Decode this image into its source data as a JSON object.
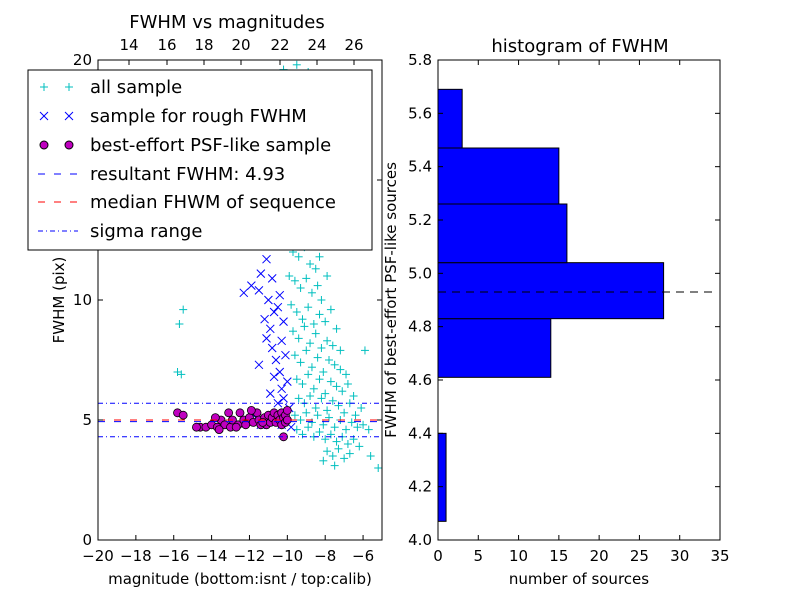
{
  "chart_data": [
    {
      "type": "scatter",
      "title": "FWHM vs magnitudes",
      "xlabel": "magnitude (bottom:isnt / top:calib)",
      "ylabel": "FWHM (pix)",
      "xlim": [
        -20,
        -5
      ],
      "ylim": [
        0,
        20
      ],
      "x_ticks": [
        "−20",
        "−18",
        "−16",
        "−14",
        "−12",
        "−10",
        "−8",
        "−6"
      ],
      "top_ticks": [
        "14",
        "16",
        "18",
        "20",
        "22",
        "24",
        "26"
      ],
      "y_ticks": [
        "0",
        "5",
        "10",
        "15",
        "20"
      ],
      "legend": [
        {
          "label": "all sample",
          "marker": "+",
          "color": "#00bfbf"
        },
        {
          "label": "sample for rough FWHM",
          "marker": "x",
          "color": "#0000ff"
        },
        {
          "label": "best-effort PSF-like sample",
          "marker": "o",
          "color": "#bf00bf"
        },
        {
          "label": "resultant FWHM: 4.93",
          "marker": "dashed",
          "color": "#0000ff"
        },
        {
          "label": "median FHWM of sequence",
          "marker": "dashed",
          "color": "#ff0000"
        },
        {
          "label": "sigma range",
          "marker": "dashdot",
          "color": "#0000ff"
        }
      ],
      "lines": {
        "resultant_fwhm": 4.93,
        "median_fwhm": 5.0,
        "sigma_range": [
          4.3,
          5.7
        ]
      },
      "series": [
        {
          "name": "all sample",
          "points": [
            [
              -15.8,
              7.0
            ],
            [
              -15.6,
              6.9
            ],
            [
              -15.5,
              9.6
            ],
            [
              -15.7,
              9.0
            ],
            [
              -10.2,
              19.6
            ],
            [
              -9.5,
              19.8
            ],
            [
              -8.9,
              19.5
            ],
            [
              -9.5,
              14.5
            ],
            [
              -9.0,
              15.2
            ],
            [
              -8.6,
              14.0
            ],
            [
              -9.8,
              13.0
            ],
            [
              -9.3,
              13.2
            ],
            [
              -8.7,
              13.0
            ],
            [
              -8.4,
              12.5
            ],
            [
              -9.7,
              12.0
            ],
            [
              -9.4,
              11.8
            ],
            [
              -9.1,
              12.2
            ],
            [
              -8.8,
              11.5
            ],
            [
              -8.5,
              11.3
            ],
            [
              -8.3,
              11.8
            ],
            [
              -9.9,
              11.0
            ],
            [
              -9.6,
              10.8
            ],
            [
              -9.3,
              10.5
            ],
            [
              -9.0,
              10.9
            ],
            [
              -8.7,
              10.3
            ],
            [
              -8.4,
              10.6
            ],
            [
              -8.2,
              10.0
            ],
            [
              -9.8,
              9.8
            ],
            [
              -9.5,
              9.5
            ],
            [
              -9.2,
              9.2
            ],
            [
              -8.9,
              9.7
            ],
            [
              -8.6,
              9.0
            ],
            [
              -8.3,
              9.4
            ],
            [
              -8.0,
              9.1
            ],
            [
              -9.7,
              8.7
            ],
            [
              -9.4,
              8.4
            ],
            [
              -9.1,
              8.9
            ],
            [
              -8.8,
              8.2
            ],
            [
              -8.5,
              8.6
            ],
            [
              -8.2,
              8.0
            ],
            [
              -7.9,
              8.3
            ],
            [
              -7.6,
              8.1
            ],
            [
              -9.6,
              7.7
            ],
            [
              -9.3,
              7.4
            ],
            [
              -9.0,
              7.9
            ],
            [
              -8.7,
              7.2
            ],
            [
              -8.4,
              7.6
            ],
            [
              -8.1,
              7.0
            ],
            [
              -7.8,
              7.5
            ],
            [
              -7.5,
              7.3
            ],
            [
              -7.2,
              7.1
            ],
            [
              -6.9,
              6.9
            ],
            [
              -9.5,
              6.7
            ],
            [
              -9.2,
              6.5
            ],
            [
              -8.9,
              6.9
            ],
            [
              -8.6,
              6.3
            ],
            [
              -8.3,
              6.7
            ],
            [
              -8.0,
              6.1
            ],
            [
              -7.7,
              6.6
            ],
            [
              -7.4,
              6.4
            ],
            [
              -7.1,
              6.2
            ],
            [
              -6.8,
              6.5
            ],
            [
              -6.5,
              6.0
            ],
            [
              -9.4,
              5.9
            ],
            [
              -9.1,
              5.7
            ],
            [
              -8.8,
              6.0
            ],
            [
              -8.5,
              5.5
            ],
            [
              -8.2,
              5.9
            ],
            [
              -7.9,
              5.4
            ],
            [
              -7.6,
              5.8
            ],
            [
              -7.3,
              5.6
            ],
            [
              -7.0,
              5.3
            ],
            [
              -6.7,
              5.7
            ],
            [
              -6.4,
              5.2
            ],
            [
              -6.1,
              5.5
            ],
            [
              -9.6,
              5.2
            ],
            [
              -9.3,
              5.0
            ],
            [
              -9.0,
              5.3
            ],
            [
              -8.7,
              4.9
            ],
            [
              -8.4,
              5.2
            ],
            [
              -8.1,
              4.8
            ],
            [
              -7.8,
              5.1
            ],
            [
              -7.5,
              4.7
            ],
            [
              -7.2,
              5.0
            ],
            [
              -6.9,
              4.6
            ],
            [
              -6.6,
              4.9
            ],
            [
              -6.3,
              4.7
            ],
            [
              -6.0,
              4.8
            ],
            [
              -5.7,
              4.6
            ],
            [
              -9.5,
              4.6
            ],
            [
              -9.2,
              4.4
            ],
            [
              -8.9,
              4.7
            ],
            [
              -8.6,
              4.3
            ],
            [
              -8.3,
              4.5
            ],
            [
              -8.0,
              4.2
            ],
            [
              -7.7,
              4.4
            ],
            [
              -7.4,
              4.1
            ],
            [
              -7.1,
              4.3
            ],
            [
              -6.8,
              4.0
            ],
            [
              -6.5,
              4.2
            ],
            [
              -6.2,
              3.9
            ],
            [
              -7.9,
              3.7
            ],
            [
              -7.6,
              3.5
            ],
            [
              -7.3,
              3.8
            ],
            [
              -7.0,
              3.4
            ],
            [
              -6.7,
              3.6
            ],
            [
              -8.1,
              3.3
            ],
            [
              -7.5,
              3.1
            ],
            [
              -5.9,
              7.9
            ],
            [
              -5.6,
              3.5
            ],
            [
              -5.2,
              3.0
            ],
            [
              -8.8,
              16.5
            ],
            [
              -9.2,
              17.2
            ],
            [
              -8.5,
              15.8
            ],
            [
              -9.6,
              16.0
            ],
            [
              -8.2,
              13.5
            ],
            [
              -7.9,
              11.0
            ],
            [
              -7.7,
              9.6
            ],
            [
              -7.4,
              8.8
            ],
            [
              -7.2,
              7.9
            ]
          ]
        },
        {
          "name": "sample for rough FWHM",
          "points": [
            [
              -11.6,
              12.3
            ],
            [
              -11.3,
              12.4
            ],
            [
              -11.1,
              11.7
            ],
            [
              -11.4,
              11.1
            ],
            [
              -11.9,
              10.6
            ],
            [
              -12.3,
              10.3
            ],
            [
              -11.5,
              10.4
            ],
            [
              -10.8,
              10.9
            ],
            [
              -10.4,
              10.2
            ],
            [
              -11.0,
              10.0
            ],
            [
              -10.7,
              9.5
            ],
            [
              -11.2,
              9.2
            ],
            [
              -10.9,
              8.8
            ],
            [
              -10.5,
              9.7
            ],
            [
              -10.2,
              9.1
            ],
            [
              -10.3,
              8.3
            ],
            [
              -10.8,
              8.0
            ],
            [
              -11.1,
              8.4
            ],
            [
              -10.6,
              7.5
            ],
            [
              -11.5,
              7.3
            ],
            [
              -10.1,
              7.7
            ],
            [
              -10.4,
              7.0
            ],
            [
              -10.7,
              6.8
            ],
            [
              -10.0,
              6.6
            ],
            [
              -10.3,
              6.3
            ],
            [
              -10.9,
              6.1
            ],
            [
              -10.2,
              5.9
            ],
            [
              -10.5,
              5.7
            ],
            [
              -9.9,
              5.5
            ],
            [
              -10.1,
              5.2
            ],
            [
              -10.6,
              5.1
            ],
            [
              -11.0,
              4.9
            ],
            [
              -10.3,
              4.8
            ],
            [
              -9.8,
              4.7
            ],
            [
              -11.4,
              4.8
            ],
            [
              -11.8,
              5.2
            ]
          ]
        },
        {
          "name": "best-effort PSF-like sample",
          "points": [
            [
              -15.8,
              5.3
            ],
            [
              -15.5,
              5.2
            ],
            [
              -14.6,
              4.7
            ],
            [
              -14.3,
              4.7
            ],
            [
              -14.0,
              4.8
            ],
            [
              -13.7,
              4.7
            ],
            [
              -13.5,
              5.0
            ],
            [
              -13.3,
              4.8
            ],
            [
              -13.0,
              4.7
            ],
            [
              -12.9,
              5.0
            ],
            [
              -12.6,
              4.8
            ],
            [
              -12.5,
              5.3
            ],
            [
              -12.3,
              5.0
            ],
            [
              -12.1,
              4.9
            ],
            [
              -12.0,
              5.1
            ],
            [
              -11.8,
              4.9
            ],
            [
              -11.6,
              5.3
            ],
            [
              -11.5,
              5.0
            ],
            [
              -11.4,
              4.8
            ],
            [
              -11.2,
              5.1
            ],
            [
              -11.1,
              4.8
            ],
            [
              -11.0,
              5.2
            ],
            [
              -10.9,
              4.9
            ],
            [
              -10.8,
              5.1
            ],
            [
              -10.7,
              5.3
            ],
            [
              -10.6,
              4.9
            ],
            [
              -10.5,
              5.2
            ],
            [
              -10.4,
              5.0
            ],
            [
              -10.3,
              4.8
            ],
            [
              -10.3,
              5.3
            ],
            [
              -10.2,
              5.1
            ],
            [
              -10.1,
              4.9
            ],
            [
              -10.1,
              5.2
            ],
            [
              -10.0,
              5.0
            ],
            [
              -10.0,
              5.4
            ],
            [
              -10.2,
              4.3
            ],
            [
              -13.8,
              5.1
            ],
            [
              -13.1,
              5.3
            ],
            [
              -12.7,
              4.7
            ],
            [
              -14.8,
              4.7
            ],
            [
              -11.9,
              5.4
            ],
            [
              -11.3,
              4.9
            ],
            [
              -12.2,
              4.8
            ],
            [
              -13.6,
              4.6
            ]
          ]
        }
      ]
    },
    {
      "type": "bar",
      "orientation": "horizontal",
      "title": "histogram of FWHM",
      "xlabel": "number of sources",
      "ylabel": "FWHM of best-effort PSF-like sources",
      "xlim": [
        0,
        35
      ],
      "ylim": [
        4.0,
        5.8
      ],
      "x_ticks": [
        "0",
        "5",
        "10",
        "15",
        "20",
        "25",
        "30",
        "35"
      ],
      "y_ticks": [
        "4.0",
        "4.2",
        "4.4",
        "4.6",
        "4.8",
        "5.0",
        "5.2",
        "5.4",
        "5.6",
        "5.8"
      ],
      "bins": [
        {
          "y0": 4.07,
          "y1": 4.4,
          "count": 1
        },
        {
          "y0": 4.4,
          "y1": 4.61,
          "count": 0
        },
        {
          "y0": 4.61,
          "y1": 4.83,
          "count": 14
        },
        {
          "y0": 4.83,
          "y1": 5.04,
          "count": 28
        },
        {
          "y0": 5.04,
          "y1": 5.26,
          "count": 16
        },
        {
          "y0": 5.26,
          "y1": 5.47,
          "count": 15
        },
        {
          "y0": 5.47,
          "y1": 5.69,
          "count": 3
        }
      ],
      "bar_color": "#0000ff",
      "reference_line": 4.93
    }
  ]
}
